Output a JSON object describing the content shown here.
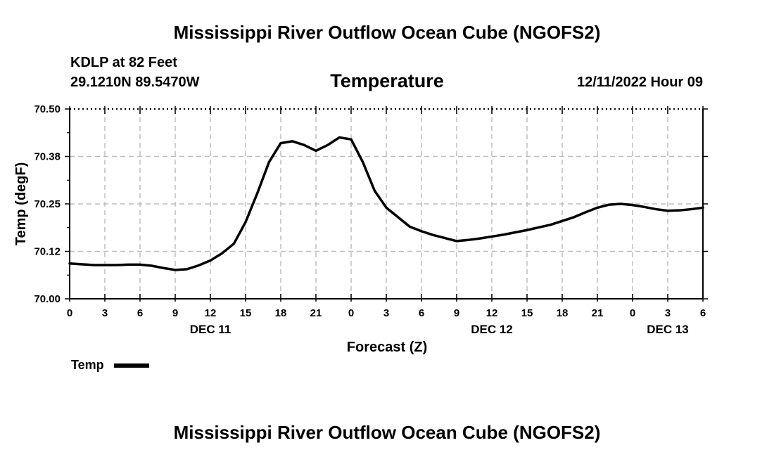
{
  "header": {
    "title": "Mississippi River Outflow Ocean Cube (NGOFS2)",
    "station": "KDLP at 82 Feet",
    "coords": "29.1210N  89.5470W",
    "chart_title": "Temperature",
    "timestamp": "12/11/2022 Hour 09"
  },
  "footer": {
    "title": "Mississippi River Outflow Ocean Cube (NGOFS2)"
  },
  "legend": {
    "label": "Temp"
  },
  "chart_data": {
    "type": "line",
    "title": "Temperature",
    "xlabel": "Forecast (Z)",
    "ylabel": "Temp (degF)",
    "ylim": [
      70.0,
      70.5
    ],
    "xlim": [
      0,
      54
    ],
    "yticks": [
      "70.00",
      "70.12",
      "70.25",
      "70.38",
      "70.50"
    ],
    "ytick_values": [
      70.0,
      70.125,
      70.25,
      70.375,
      70.5
    ],
    "xticks": [
      "0",
      "3",
      "6",
      "9",
      "12",
      "15",
      "18",
      "21",
      "0",
      "3",
      "6",
      "9",
      "12",
      "15",
      "18",
      "21",
      "0",
      "3",
      "6"
    ],
    "xtick_values": [
      0,
      3,
      6,
      9,
      12,
      15,
      18,
      21,
      24,
      27,
      30,
      33,
      36,
      39,
      42,
      45,
      48,
      51,
      54
    ],
    "date_labels": [
      {
        "hour": 12,
        "text": "DEC 11"
      },
      {
        "hour": 36,
        "text": "DEC 12"
      },
      {
        "hour": 51,
        "text": "DEC 13"
      }
    ],
    "grid": true,
    "color": "#000000",
    "series": [
      {
        "name": "Temp",
        "x": [
          0,
          1,
          2,
          3,
          4,
          5,
          6,
          7,
          8,
          9,
          10,
          11,
          12,
          13,
          14,
          15,
          16,
          17,
          18,
          19,
          20,
          21,
          22,
          23,
          24,
          25,
          26,
          27,
          28,
          29,
          30,
          31,
          32,
          33,
          34,
          35,
          36,
          37,
          38,
          39,
          40,
          41,
          42,
          43,
          44,
          45,
          46,
          47,
          48,
          49,
          50,
          51,
          52,
          53,
          54
        ],
        "values": [
          70.093,
          70.091,
          70.089,
          70.089,
          70.089,
          70.09,
          70.09,
          70.087,
          70.081,
          70.076,
          70.078,
          70.088,
          70.101,
          70.12,
          70.145,
          70.202,
          70.278,
          70.36,
          70.41,
          70.415,
          70.405,
          70.39,
          70.405,
          70.425,
          70.42,
          70.36,
          70.285,
          70.24,
          70.215,
          70.19,
          70.178,
          70.168,
          70.16,
          70.152,
          70.155,
          70.159,
          70.164,
          70.169,
          70.175,
          70.181,
          70.188,
          70.195,
          70.205,
          70.215,
          70.228,
          70.24,
          70.248,
          70.25,
          70.247,
          70.242,
          70.236,
          70.232,
          70.233,
          70.236,
          70.24
        ]
      }
    ]
  }
}
